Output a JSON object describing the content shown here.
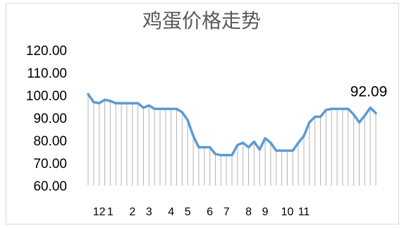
{
  "chart_data": {
    "type": "line",
    "title": "鸡蛋价格走势",
    "xlabel": "",
    "ylabel": "",
    "ylim": [
      60,
      120
    ],
    "y_ticks": [
      "120.00",
      "110.00",
      "100.00",
      "90.00",
      "80.00",
      "70.00",
      "60.00"
    ],
    "x_tick_labels": [
      {
        "index": 2,
        "label": "12"
      },
      {
        "index": 4,
        "label": "1"
      },
      {
        "index": 8,
        "label": "2"
      },
      {
        "index": 11,
        "label": "3"
      },
      {
        "index": 15,
        "label": "4"
      },
      {
        "index": 18,
        "label": "5"
      },
      {
        "index": 22,
        "label": "6"
      },
      {
        "index": 25,
        "label": "7"
      },
      {
        "index": 29,
        "label": "8"
      },
      {
        "index": 32,
        "label": "9"
      },
      {
        "index": 36,
        "label": "10"
      },
      {
        "index": 39,
        "label": "11"
      }
    ],
    "drop_lines": true,
    "grid": false,
    "legend": "none",
    "series": [
      {
        "color": "#5b9bd5",
        "values": [
          100.5,
          97,
          96.5,
          98,
          97.5,
          96.5,
          96.5,
          96.5,
          96.5,
          96.5,
          94.5,
          95.5,
          94,
          94,
          94,
          94,
          94,
          92.5,
          89,
          82,
          77,
          77,
          77,
          74,
          73.5,
          73.5,
          73.5,
          78,
          79,
          77,
          79.5,
          76,
          81,
          79,
          75.5,
          75.5,
          75.5,
          75.5,
          79,
          82,
          88,
          90.5,
          90.5,
          93.5,
          94,
          94,
          94,
          94,
          91.5,
          88,
          91,
          94.5,
          92.09
        ]
      }
    ],
    "data_label": {
      "text": "92.09"
    }
  }
}
